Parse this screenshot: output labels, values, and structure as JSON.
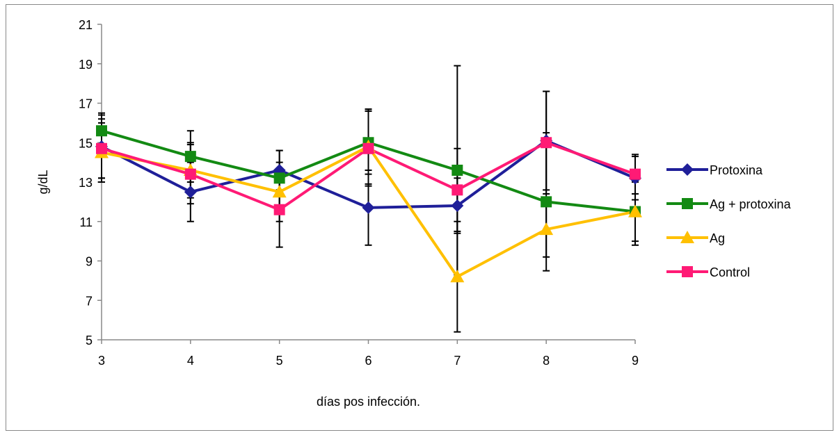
{
  "chart_data": {
    "type": "line",
    "title": "",
    "xlabel": "días pos infección.",
    "ylabel": "g/dL",
    "x": [
      3,
      4,
      5,
      6,
      7,
      8,
      9
    ],
    "ylim": [
      5,
      21
    ],
    "yticks": [
      5,
      7,
      9,
      11,
      13,
      15,
      17,
      19,
      21
    ],
    "grid": false,
    "legend_position": "right",
    "series": [
      {
        "name": "Protoxina",
        "color": "#1F1F99",
        "marker": "diamond",
        "values": [
          14.8,
          12.5,
          13.6,
          11.7,
          11.8,
          15.1,
          13.2
        ],
        "error": [
          1.6,
          1.5,
          1.0,
          1.9,
          1.4,
          2.5,
          1.1
        ]
      },
      {
        "name": "Ag + protoxina",
        "color": "#138A13",
        "marker": "square",
        "values": [
          15.6,
          14.3,
          13.2,
          15.0,
          13.6,
          12.0,
          11.5
        ],
        "error": [
          0.9,
          1.3,
          1.4,
          1.6,
          5.3,
          3.5,
          1.5
        ]
      },
      {
        "name": "Ag",
        "color": "#FFC000",
        "marker": "triangle",
        "values": [
          14.5,
          13.6,
          12.5,
          14.8,
          8.2,
          10.6,
          11.5
        ],
        "error": [
          1.5,
          1.4,
          1.5,
          1.9,
          2.8,
          1.4,
          1.7
        ]
      },
      {
        "name": "Control",
        "color": "#FF1A75",
        "marker": "square",
        "values": [
          14.7,
          13.4,
          11.6,
          14.7,
          12.6,
          15.0,
          13.4
        ],
        "error": [
          1.5,
          1.5,
          1.9,
          1.9,
          2.1,
          2.6,
          1.0
        ]
      }
    ]
  }
}
